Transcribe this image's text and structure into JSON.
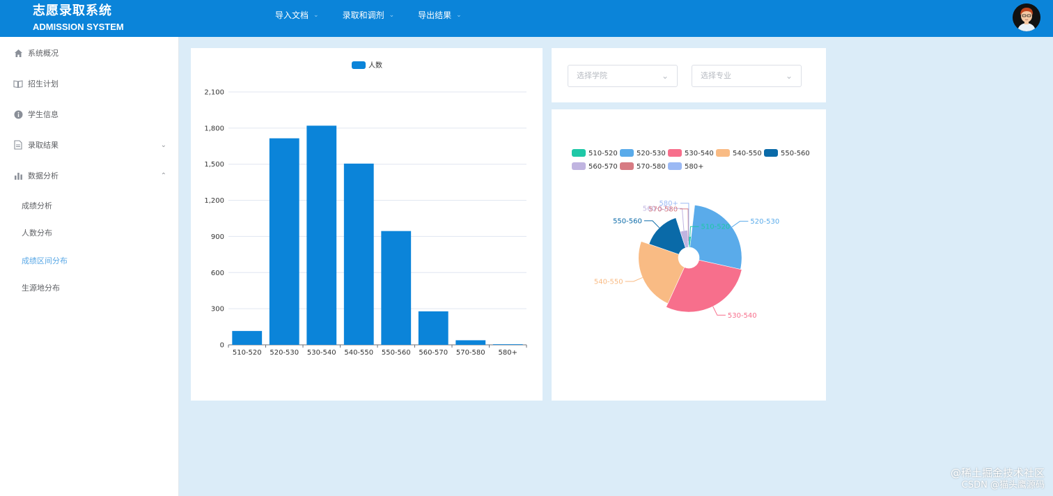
{
  "header": {
    "title_zh": "志愿录取系统",
    "title_en": "ADMISSION SYSTEM",
    "menu": [
      {
        "label": "导入文档"
      },
      {
        "label": "录取和调剂"
      },
      {
        "label": "导出结果"
      }
    ]
  },
  "sidebar": {
    "items": [
      {
        "label": "系统概况",
        "icon": "home-icon"
      },
      {
        "label": "招生计划",
        "icon": "book-icon"
      },
      {
        "label": "学生信息",
        "icon": "info-icon"
      },
      {
        "label": "录取结果",
        "icon": "document-icon"
      },
      {
        "label": "数据分析",
        "icon": "bar-chart-icon"
      }
    ],
    "sub_items": [
      {
        "label": "成绩分析"
      },
      {
        "label": "人数分布"
      },
      {
        "label": "成绩区间分布",
        "active": true
      },
      {
        "label": "生源地分布"
      }
    ]
  },
  "filters": {
    "college_placeholder": "选择学院",
    "major_placeholder": "选择专业"
  },
  "colors": {
    "header": "#0b84d9",
    "bar": "#0b84d9",
    "active_menu": "#5aa8e6",
    "page_bg": "#dbecf8"
  },
  "chart_data": [
    {
      "type": "bar",
      "legend": [
        "人数"
      ],
      "categories": [
        "510-520",
        "520-530",
        "530-540",
        "540-550",
        "550-560",
        "560-570",
        "570-580",
        "580+"
      ],
      "values": [
        115,
        1715,
        1820,
        1505,
        945,
        278,
        38,
        5
      ],
      "ylim": [
        0,
        2100
      ],
      "yticks": [
        0,
        300,
        600,
        900,
        1200,
        1500,
        1800,
        2100
      ],
      "ytick_labels": [
        "0",
        "300",
        "600",
        "900",
        "1,200",
        "1,500",
        "1,800",
        "2,100"
      ],
      "grid": true
    },
    {
      "type": "pie",
      "rose": true,
      "categories": [
        "510-520",
        "520-530",
        "530-540",
        "540-550",
        "550-560",
        "560-570",
        "570-580",
        "580+"
      ],
      "values": [
        115,
        1715,
        1820,
        1505,
        945,
        278,
        38,
        5
      ],
      "colors": [
        "#1fc8a7",
        "#5aabea",
        "#f76f8c",
        "#f9bb84",
        "#0a6aa8",
        "#c0b4e0",
        "#d77b83",
        "#9bb9f4"
      ],
      "legend": [
        "510-520",
        "520-530",
        "530-540",
        "540-550",
        "550-560",
        "560-570",
        "570-580",
        "580+"
      ]
    }
  ],
  "watermark": {
    "line1": "@稀土掘金技术社区",
    "line2": "CSDN @猫头鹰源码"
  }
}
